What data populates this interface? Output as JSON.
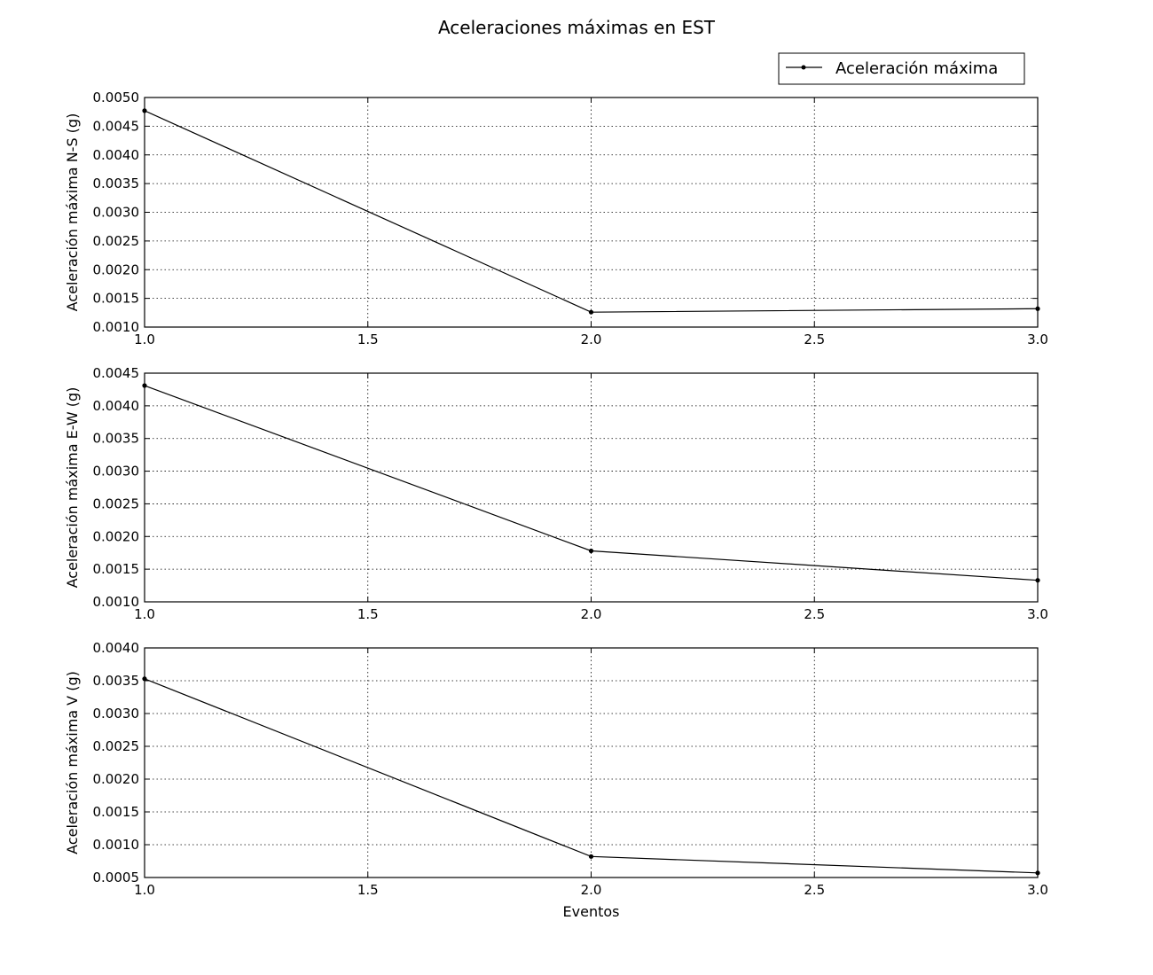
{
  "figure": {
    "title": "Aceleraciones máximas en EST",
    "legend_label": "Aceleración máxima",
    "legend_position": "top-right"
  },
  "chart_data": [
    {
      "type": "line",
      "ylabel": "Aceleración máxima N-S (g)",
      "xlabel": "",
      "xlim": [
        1.0,
        3.0
      ],
      "ylim": [
        0.001,
        0.005
      ],
      "xticks": [
        "1.0",
        "1.5",
        "2.0",
        "2.5",
        "3.0"
      ],
      "yticks": [
        "0.0010",
        "0.0015",
        "0.0020",
        "0.0025",
        "0.0030",
        "0.0035",
        "0.0040",
        "0.0045",
        "0.0050"
      ],
      "grid": true,
      "series": [
        {
          "x": [
            1,
            2,
            3
          ],
          "values": [
            0.00477,
            0.00126,
            0.00132
          ]
        }
      ]
    },
    {
      "type": "line",
      "ylabel": "Aceleración máxima E-W (g)",
      "xlabel": "",
      "xlim": [
        1.0,
        3.0
      ],
      "ylim": [
        0.001,
        0.0045
      ],
      "xticks": [
        "1.0",
        "1.5",
        "2.0",
        "2.5",
        "3.0"
      ],
      "yticks": [
        "0.0010",
        "0.0015",
        "0.0020",
        "0.0025",
        "0.0030",
        "0.0035",
        "0.0040",
        "0.0045"
      ],
      "grid": true,
      "series": [
        {
          "x": [
            1,
            2,
            3
          ],
          "values": [
            0.00431,
            0.00178,
            0.00133
          ]
        }
      ]
    },
    {
      "type": "line",
      "ylabel": "Aceleración máxima V (g)",
      "xlabel": "Eventos",
      "xlim": [
        1.0,
        3.0
      ],
      "ylim": [
        0.0005,
        0.004
      ],
      "xticks": [
        "1.0",
        "1.5",
        "2.0",
        "2.5",
        "3.0"
      ],
      "yticks": [
        "0.0005",
        "0.0010",
        "0.0015",
        "0.0020",
        "0.0025",
        "0.0030",
        "0.0035",
        "0.0040"
      ],
      "grid": true,
      "series": [
        {
          "x": [
            1,
            2,
            3
          ],
          "values": [
            0.00353,
            0.00082,
            0.00057
          ]
        }
      ]
    }
  ]
}
